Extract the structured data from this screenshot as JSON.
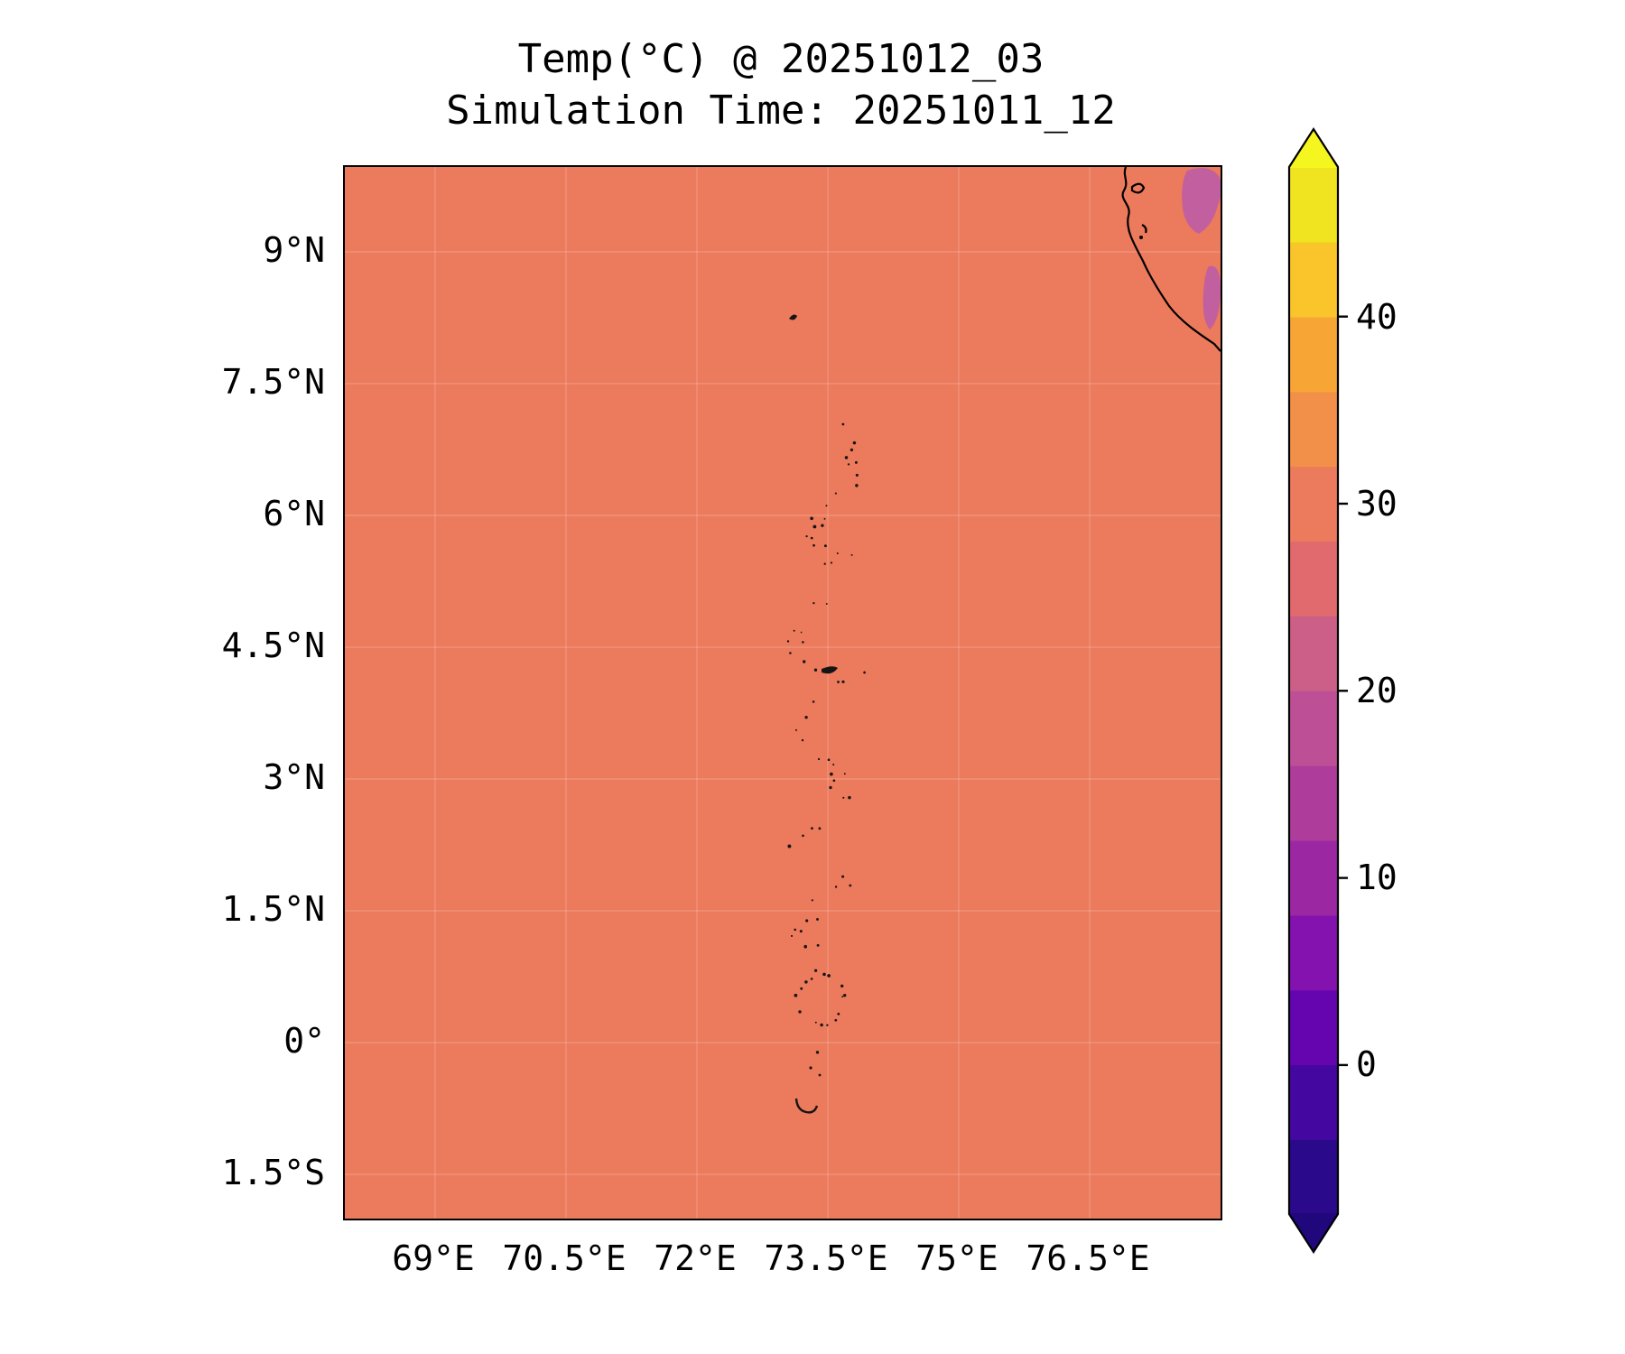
{
  "chart_data": {
    "type": "heatmap",
    "title": "Temp(°C) @ 20251012_03",
    "subtitle": "Simulation Time: 20251011_12",
    "variable": "Temp",
    "units": "°C",
    "valid_time": "20251012_03",
    "simulation_time": "20251011_12",
    "x_ticks": [
      "69°E",
      "70.5°E",
      "72°E",
      "73.5°E",
      "75°E",
      "76.5°E"
    ],
    "y_ticks": [
      "9°N",
      "7.5°N",
      "6°N",
      "4.5°N",
      "3°N",
      "1.5°N",
      "0°",
      "1.5°S"
    ],
    "grid": true,
    "legend_position": "right-colorbar",
    "colorbar": {
      "ticks": [
        "40",
        "30",
        "20",
        "10",
        "0"
      ],
      "tick_values": [
        40,
        30,
        20,
        10,
        0
      ],
      "value_range": [
        -8,
        48
      ],
      "extend": "both",
      "band_colors": [
        "#2a0a8a",
        "#4407a0",
        "#6505b0",
        "#8312ae",
        "#9b28a2",
        "#ad3c9a",
        "#bc4f96",
        "#cb5f87",
        "#e06a6e",
        "#ec7a5c",
        "#f28f48",
        "#f7a636",
        "#f9c52b",
        "#f0e31f"
      ],
      "extend_low_color": "#20077c",
      "extend_high_color": "#f5f620"
    },
    "field": {
      "ocean_color": "#ec7a5c",
      "ocean_value_estimate_c": 29,
      "patch_color": "#c25f9e",
      "patch_value_estimate_c": 22,
      "coastline_color": "#000000",
      "island_color": "#151515",
      "features": [
        "coastline-top-right",
        "island-chain-center",
        "magenta-patches-top-right"
      ]
    }
  }
}
